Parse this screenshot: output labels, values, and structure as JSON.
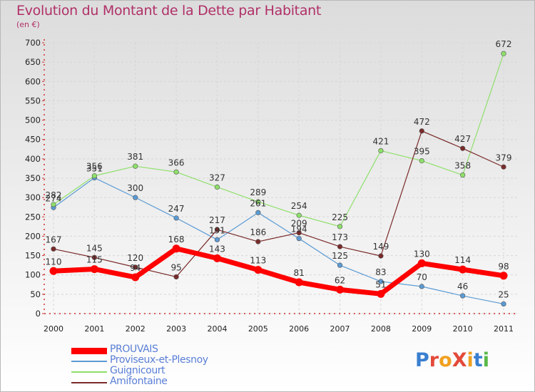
{
  "title": "Evolution du Montant de la Dette par Habitant",
  "subtitle": "(en €)",
  "logo": {
    "text": "ProXiti",
    "colors": [
      "#3a7fd0",
      "#e34a3a",
      "#f0a020",
      "#e34a3a",
      "#f0a020",
      "#3a7fd0",
      "#58b848"
    ]
  },
  "chart_data": {
    "type": "line",
    "x": [
      "2000",
      "2001",
      "2002",
      "2003",
      "2004",
      "2005",
      "2006",
      "2007",
      "2008",
      "2009",
      "2010",
      "2011"
    ],
    "ylim": [
      0,
      700
    ],
    "yticks": [
      0,
      50,
      100,
      150,
      200,
      250,
      300,
      350,
      400,
      450,
      500,
      550,
      600,
      650,
      700
    ],
    "grid": true,
    "legend_position": "bottom-left",
    "series": [
      {
        "name": "PROUVAIS",
        "color": "#ff0000",
        "width": 7,
        "values": [
          110,
          115,
          94,
          168,
          143,
          113,
          81,
          62,
          51,
          130,
          114,
          98
        ],
        "labels": [
          "110",
          "115",
          "94",
          "168",
          "143",
          "113",
          "81",
          "62",
          "51",
          "130",
          "114",
          "98"
        ]
      },
      {
        "name": "Proviseux-et-Plesnoy",
        "color": "#5b9bd5",
        "width": 1.2,
        "values": [
          274,
          351,
          300,
          247,
          191,
          261,
          194,
          125,
          83,
          70,
          46,
          25
        ],
        "labels": [
          "274",
          "351",
          "300",
          "247",
          "191",
          "261",
          "194",
          "125",
          "83",
          "70",
          "46",
          "25"
        ]
      },
      {
        "name": "Guignicourt",
        "color": "#8ee06a",
        "width": 1.2,
        "values": [
          282,
          356,
          381,
          366,
          327,
          289,
          254,
          225,
          421,
          395,
          358,
          672
        ],
        "labels": [
          "282",
          "356",
          "381",
          "366",
          "327",
          "289",
          "254",
          "225",
          "421",
          "395",
          "358",
          "672"
        ]
      },
      {
        "name": "Amifontaine",
        "color": "#7a2a2a",
        "width": 1.2,
        "values": [
          167,
          145,
          120,
          95,
          217,
          186,
          209,
          173,
          149,
          472,
          427,
          379
        ],
        "labels": [
          "167",
          "145",
          "120",
          "95",
          "217",
          "186",
          "209",
          "173",
          "149",
          "472",
          "427",
          "379"
        ]
      }
    ]
  }
}
